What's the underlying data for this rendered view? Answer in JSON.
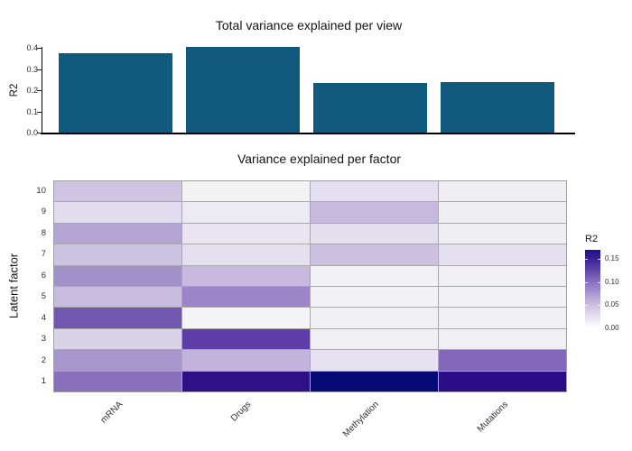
{
  "chart_data": [
    {
      "type": "bar",
      "title": "Total variance explained per view",
      "ylabel": "R2",
      "categories": [
        "mRNA",
        "Drugs",
        "Methylation",
        "Mutations"
      ],
      "values": [
        0.375,
        0.405,
        0.235,
        0.24
      ],
      "ylim": [
        0,
        0.41
      ],
      "yticks": [
        0.0,
        0.1,
        0.2,
        0.3,
        0.4
      ],
      "ytick_labels": [
        "0.0",
        "0.1",
        "0.2",
        "0.3",
        "0.4"
      ],
      "bar_color": "#115a7e",
      "grid": false,
      "legend_position": "none"
    },
    {
      "type": "heatmap",
      "title": "Variance explained per factor",
      "ylabel": "Latent factor",
      "columns": [
        "mRNA",
        "Drugs",
        "Methylation",
        "Mutations"
      ],
      "rows_top_to_bottom": [
        "10",
        "9",
        "8",
        "7",
        "6",
        "5",
        "4",
        "3",
        "2",
        "1"
      ],
      "values": [
        [
          0.044,
          0.002,
          0.026,
          0.007
        ],
        [
          0.03,
          0.015,
          0.052,
          0.007
        ],
        [
          0.065,
          0.02,
          0.027,
          0.007
        ],
        [
          0.045,
          0.025,
          0.047,
          0.025
        ],
        [
          0.08,
          0.05,
          0.004,
          0.005
        ],
        [
          0.05,
          0.085,
          0.004,
          0.004
        ],
        [
          0.115,
          0.003,
          0.005,
          0.005
        ],
        [
          0.04,
          0.125,
          0.005,
          0.005
        ],
        [
          0.075,
          0.055,
          0.025,
          0.105
        ],
        [
          0.1,
          0.155,
          0.17,
          0.16
        ]
      ],
      "cell_colors": [
        [
          "#cfc5e3",
          "#f3f3f4",
          "#e5e0f0",
          "#efeff3"
        ],
        [
          "#e1dcee",
          "#eceaf2",
          "#c5b9dd",
          "#efeff3"
        ],
        [
          "#b3a4d3",
          "#e9e6f1",
          "#e3dfef",
          "#efeff3"
        ],
        [
          "#cdc3e2",
          "#e4e0ef",
          "#ccc1e0",
          "#e4e0ef"
        ],
        [
          "#a392c9",
          "#c6b9dd",
          "#f2f1f5",
          "#f0f0f4"
        ],
        [
          "#c7bce0",
          "#9b85c8",
          "#f2f1f5",
          "#f2f1f5"
        ],
        [
          "#7257ae",
          "#f4f3f6",
          "#f0eff4",
          "#f0eff4"
        ],
        [
          "#d9d3e8",
          "#5e3da8",
          "#f0eff4",
          "#f0eff4"
        ],
        [
          "#a795cc",
          "#c2b3dc",
          "#e6e2f1",
          "#8267ba"
        ],
        [
          "#8a70ba",
          "#2e1187",
          "#050a75",
          "#2b0d85"
        ]
      ],
      "colorscale": {
        "min": 0.0,
        "max": 0.17,
        "gradient_bottom_to_top": [
          "#ffffff",
          "#cdc2e1",
          "#8b73c0",
          "#3a2196",
          "#1c1189"
        ]
      },
      "legend": {
        "title": "R2",
        "tick_labels": [
          "0.15",
          "0.10",
          "0.05",
          "0.00"
        ],
        "tick_values": [
          0.15,
          0.1,
          0.05,
          0.0
        ],
        "position": "right"
      }
    }
  ]
}
